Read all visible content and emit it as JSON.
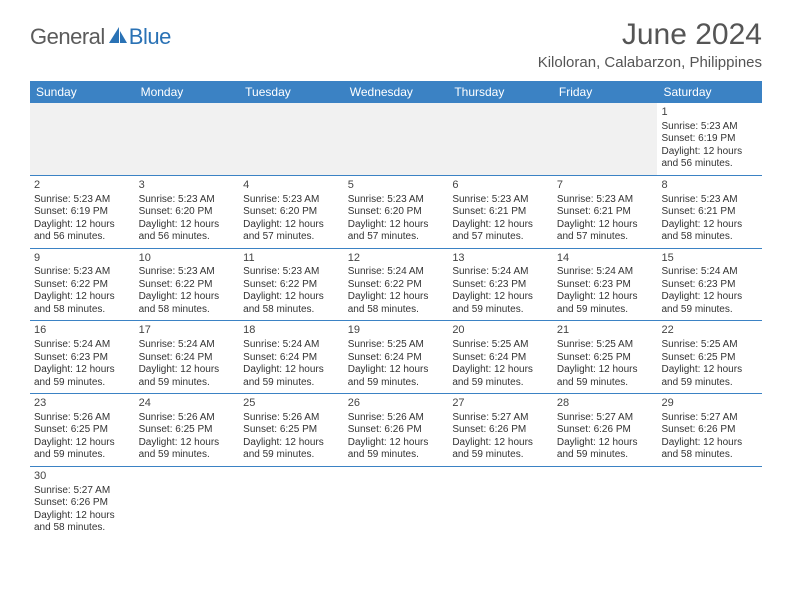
{
  "brand": {
    "part1": "General",
    "part2": "Blue"
  },
  "title": "June 2024",
  "location": "Kiloloran, Calabarzon, Philippines",
  "colors": {
    "header_bg": "#3b82c4",
    "header_text": "#ffffff",
    "border": "#3b82c4",
    "empty_bg": "#f1f1f1",
    "logo_gray": "#5b5b5b",
    "logo_blue": "#2a72b5"
  },
  "day_names": [
    "Sunday",
    "Monday",
    "Tuesday",
    "Wednesday",
    "Thursday",
    "Friday",
    "Saturday"
  ],
  "weeks": [
    [
      null,
      null,
      null,
      null,
      null,
      null,
      {
        "d": "1",
        "sr": "Sunrise: 5:23 AM",
        "ss": "Sunset: 6:19 PM",
        "dl1": "Daylight: 12 hours",
        "dl2": "and 56 minutes."
      }
    ],
    [
      {
        "d": "2",
        "sr": "Sunrise: 5:23 AM",
        "ss": "Sunset: 6:19 PM",
        "dl1": "Daylight: 12 hours",
        "dl2": "and 56 minutes."
      },
      {
        "d": "3",
        "sr": "Sunrise: 5:23 AM",
        "ss": "Sunset: 6:20 PM",
        "dl1": "Daylight: 12 hours",
        "dl2": "and 56 minutes."
      },
      {
        "d": "4",
        "sr": "Sunrise: 5:23 AM",
        "ss": "Sunset: 6:20 PM",
        "dl1": "Daylight: 12 hours",
        "dl2": "and 57 minutes."
      },
      {
        "d": "5",
        "sr": "Sunrise: 5:23 AM",
        "ss": "Sunset: 6:20 PM",
        "dl1": "Daylight: 12 hours",
        "dl2": "and 57 minutes."
      },
      {
        "d": "6",
        "sr": "Sunrise: 5:23 AM",
        "ss": "Sunset: 6:21 PM",
        "dl1": "Daylight: 12 hours",
        "dl2": "and 57 minutes."
      },
      {
        "d": "7",
        "sr": "Sunrise: 5:23 AM",
        "ss": "Sunset: 6:21 PM",
        "dl1": "Daylight: 12 hours",
        "dl2": "and 57 minutes."
      },
      {
        "d": "8",
        "sr": "Sunrise: 5:23 AM",
        "ss": "Sunset: 6:21 PM",
        "dl1": "Daylight: 12 hours",
        "dl2": "and 58 minutes."
      }
    ],
    [
      {
        "d": "9",
        "sr": "Sunrise: 5:23 AM",
        "ss": "Sunset: 6:22 PM",
        "dl1": "Daylight: 12 hours",
        "dl2": "and 58 minutes."
      },
      {
        "d": "10",
        "sr": "Sunrise: 5:23 AM",
        "ss": "Sunset: 6:22 PM",
        "dl1": "Daylight: 12 hours",
        "dl2": "and 58 minutes."
      },
      {
        "d": "11",
        "sr": "Sunrise: 5:23 AM",
        "ss": "Sunset: 6:22 PM",
        "dl1": "Daylight: 12 hours",
        "dl2": "and 58 minutes."
      },
      {
        "d": "12",
        "sr": "Sunrise: 5:24 AM",
        "ss": "Sunset: 6:22 PM",
        "dl1": "Daylight: 12 hours",
        "dl2": "and 58 minutes."
      },
      {
        "d": "13",
        "sr": "Sunrise: 5:24 AM",
        "ss": "Sunset: 6:23 PM",
        "dl1": "Daylight: 12 hours",
        "dl2": "and 59 minutes."
      },
      {
        "d": "14",
        "sr": "Sunrise: 5:24 AM",
        "ss": "Sunset: 6:23 PM",
        "dl1": "Daylight: 12 hours",
        "dl2": "and 59 minutes."
      },
      {
        "d": "15",
        "sr": "Sunrise: 5:24 AM",
        "ss": "Sunset: 6:23 PM",
        "dl1": "Daylight: 12 hours",
        "dl2": "and 59 minutes."
      }
    ],
    [
      {
        "d": "16",
        "sr": "Sunrise: 5:24 AM",
        "ss": "Sunset: 6:23 PM",
        "dl1": "Daylight: 12 hours",
        "dl2": "and 59 minutes."
      },
      {
        "d": "17",
        "sr": "Sunrise: 5:24 AM",
        "ss": "Sunset: 6:24 PM",
        "dl1": "Daylight: 12 hours",
        "dl2": "and 59 minutes."
      },
      {
        "d": "18",
        "sr": "Sunrise: 5:24 AM",
        "ss": "Sunset: 6:24 PM",
        "dl1": "Daylight: 12 hours",
        "dl2": "and 59 minutes."
      },
      {
        "d": "19",
        "sr": "Sunrise: 5:25 AM",
        "ss": "Sunset: 6:24 PM",
        "dl1": "Daylight: 12 hours",
        "dl2": "and 59 minutes."
      },
      {
        "d": "20",
        "sr": "Sunrise: 5:25 AM",
        "ss": "Sunset: 6:24 PM",
        "dl1": "Daylight: 12 hours",
        "dl2": "and 59 minutes."
      },
      {
        "d": "21",
        "sr": "Sunrise: 5:25 AM",
        "ss": "Sunset: 6:25 PM",
        "dl1": "Daylight: 12 hours",
        "dl2": "and 59 minutes."
      },
      {
        "d": "22",
        "sr": "Sunrise: 5:25 AM",
        "ss": "Sunset: 6:25 PM",
        "dl1": "Daylight: 12 hours",
        "dl2": "and 59 minutes."
      }
    ],
    [
      {
        "d": "23",
        "sr": "Sunrise: 5:26 AM",
        "ss": "Sunset: 6:25 PM",
        "dl1": "Daylight: 12 hours",
        "dl2": "and 59 minutes."
      },
      {
        "d": "24",
        "sr": "Sunrise: 5:26 AM",
        "ss": "Sunset: 6:25 PM",
        "dl1": "Daylight: 12 hours",
        "dl2": "and 59 minutes."
      },
      {
        "d": "25",
        "sr": "Sunrise: 5:26 AM",
        "ss": "Sunset: 6:25 PM",
        "dl1": "Daylight: 12 hours",
        "dl2": "and 59 minutes."
      },
      {
        "d": "26",
        "sr": "Sunrise: 5:26 AM",
        "ss": "Sunset: 6:26 PM",
        "dl1": "Daylight: 12 hours",
        "dl2": "and 59 minutes."
      },
      {
        "d": "27",
        "sr": "Sunrise: 5:27 AM",
        "ss": "Sunset: 6:26 PM",
        "dl1": "Daylight: 12 hours",
        "dl2": "and 59 minutes."
      },
      {
        "d": "28",
        "sr": "Sunrise: 5:27 AM",
        "ss": "Sunset: 6:26 PM",
        "dl1": "Daylight: 12 hours",
        "dl2": "and 59 minutes."
      },
      {
        "d": "29",
        "sr": "Sunrise: 5:27 AM",
        "ss": "Sunset: 6:26 PM",
        "dl1": "Daylight: 12 hours",
        "dl2": "and 58 minutes."
      }
    ],
    [
      {
        "d": "30",
        "sr": "Sunrise: 5:27 AM",
        "ss": "Sunset: 6:26 PM",
        "dl1": "Daylight: 12 hours",
        "dl2": "and 58 minutes."
      },
      null,
      null,
      null,
      null,
      null,
      null
    ]
  ]
}
